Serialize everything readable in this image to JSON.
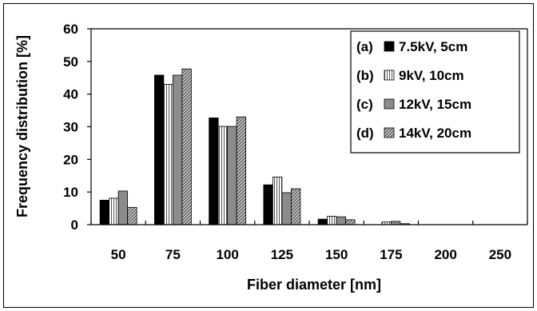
{
  "chart_data": {
    "type": "bar",
    "title": "",
    "xlabel": "Fiber diameter [nm]",
    "ylabel": "Frequency distribution [%]",
    "ylim": [
      0,
      60
    ],
    "yticks": [
      "0",
      "10",
      "20",
      "30",
      "40",
      "50",
      "60"
    ],
    "categories": [
      "50",
      "75",
      "100",
      "125",
      "150",
      "175",
      "200",
      "250"
    ],
    "grid": false,
    "legend_position": "top-right",
    "series": [
      {
        "name": "7.5kV, 5cm",
        "tag": "(a)",
        "pattern": "solid-black",
        "values": [
          7.5,
          45.8,
          32.7,
          12.2,
          1.7,
          0.0,
          0.0,
          0.0
        ]
      },
      {
        "name": "9kV, 10cm",
        "tag": "(b)",
        "pattern": "vertical-lines",
        "values": [
          8.1,
          43.0,
          30.1,
          14.6,
          2.6,
          0.8,
          0.0,
          0.0
        ]
      },
      {
        "name": "12kV, 15cm",
        "tag": "(c)",
        "pattern": "gray",
        "values": [
          10.3,
          45.8,
          30.1,
          9.8,
          2.4,
          1.0,
          0.0,
          0.0
        ]
      },
      {
        "name": "14kV, 20cm",
        "tag": "(d)",
        "pattern": "diagonal-lines",
        "values": [
          5.3,
          47.7,
          33.0,
          11.0,
          1.5,
          0.3,
          0.0,
          0.0
        ]
      }
    ]
  }
}
